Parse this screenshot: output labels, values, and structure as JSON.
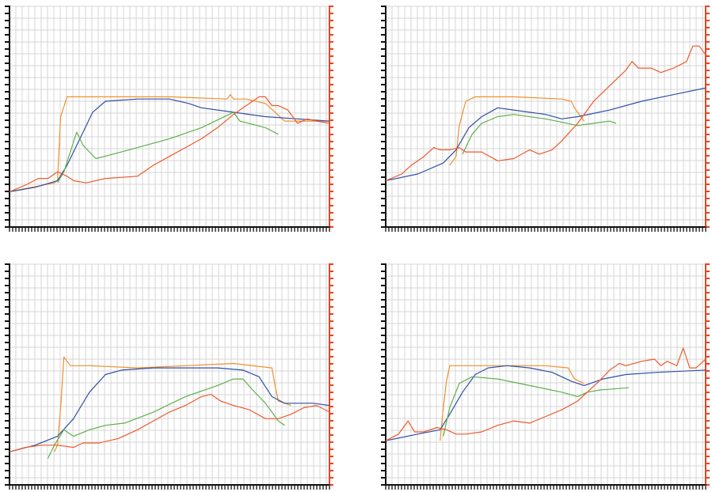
{
  "chart_data": [
    {
      "type": "line",
      "xlim": [
        0,
        100
      ],
      "ylim": [
        0,
        100
      ],
      "grid": true,
      "colors": {
        "orange": "#f0902a",
        "blue": "#2e4fa6",
        "green": "#5cb04c",
        "red": "#ee5a2c",
        "axis": "#111111",
        "redaxis": "#e8431f",
        "grid": "#d4d4d4"
      },
      "series": [
        {
          "color": "orange",
          "points": [
            [
              0,
              16
            ],
            [
              14,
              20
            ],
            [
              15,
              21
            ],
            [
              16,
              50
            ],
            [
              18,
              59
            ],
            [
              30,
              59
            ],
            [
              50,
              59
            ],
            [
              68,
              58
            ],
            [
              69,
              60
            ],
            [
              70,
              58
            ],
            [
              74,
              58
            ],
            [
              80,
              56
            ],
            [
              86,
              48
            ],
            [
              100,
              48
            ]
          ]
        },
        {
          "color": "blue",
          "points": [
            [
              0,
              16
            ],
            [
              8,
              18
            ],
            [
              15,
              21
            ],
            [
              18,
              28
            ],
            [
              22,
              40
            ],
            [
              26,
              52
            ],
            [
              30,
              57
            ],
            [
              40,
              58
            ],
            [
              50,
              58
            ],
            [
              56,
              56
            ],
            [
              60,
              54
            ],
            [
              70,
              52
            ],
            [
              80,
              50
            ],
            [
              90,
              49
            ],
            [
              100,
              48
            ]
          ]
        },
        {
          "color": "green",
          "points": [
            [
              15,
              20
            ],
            [
              17,
              25
            ],
            [
              21,
              43
            ],
            [
              23,
              37
            ],
            [
              27,
              31
            ],
            [
              35,
              34
            ],
            [
              50,
              40
            ],
            [
              60,
              45
            ],
            [
              70,
              52
            ],
            [
              72,
              48
            ],
            [
              80,
              45
            ],
            [
              84,
              42
            ]
          ]
        },
        {
          "color": "red",
          "points": [
            [
              0,
              16
            ],
            [
              5,
              19
            ],
            [
              9,
              22
            ],
            [
              12,
              22
            ],
            [
              15,
              25
            ],
            [
              18,
              23
            ],
            [
              20,
              21
            ],
            [
              24,
              20
            ],
            [
              30,
              22
            ],
            [
              40,
              23
            ],
            [
              45,
              28
            ],
            [
              50,
              32
            ],
            [
              55,
              36
            ],
            [
              60,
              40
            ],
            [
              65,
              45
            ],
            [
              70,
              51
            ],
            [
              75,
              56
            ],
            [
              78,
              59
            ],
            [
              80,
              59
            ],
            [
              82,
              55
            ],
            [
              84,
              55
            ],
            [
              87,
              53
            ],
            [
              90,
              47
            ],
            [
              93,
              49
            ],
            [
              96,
              48
            ],
            [
              100,
              47
            ]
          ]
        }
      ]
    },
    {
      "type": "line",
      "xlim": [
        0,
        100
      ],
      "ylim": [
        0,
        100
      ],
      "grid": true,
      "colors": {
        "orange": "#f0902a",
        "blue": "#2e4fa6",
        "green": "#5cb04c",
        "red": "#ee5a2c",
        "axis": "#111111",
        "redaxis": "#e8431f",
        "grid": "#d4d4d4"
      },
      "series": [
        {
          "color": "orange",
          "points": [
            [
              20,
              28
            ],
            [
              22,
              32
            ],
            [
              23,
              46
            ],
            [
              25,
              57
            ],
            [
              28,
              59
            ],
            [
              40,
              59
            ],
            [
              55,
              58
            ],
            [
              58,
              57
            ],
            [
              59,
              54
            ],
            [
              62,
              48
            ]
          ]
        },
        {
          "color": "blue",
          "points": [
            [
              0,
              21
            ],
            [
              10,
              24
            ],
            [
              18,
              29
            ],
            [
              22,
              35
            ],
            [
              26,
              45
            ],
            [
              30,
              50
            ],
            [
              35,
              54
            ],
            [
              40,
              53
            ],
            [
              50,
              51
            ],
            [
              55,
              49
            ],
            [
              60,
              50
            ],
            [
              70,
              53
            ],
            [
              80,
              57
            ],
            [
              90,
              60
            ],
            [
              100,
              63
            ]
          ]
        },
        {
          "color": "green",
          "points": [
            [
              24,
              33
            ],
            [
              27,
              42
            ],
            [
              30,
              47
            ],
            [
              35,
              50
            ],
            [
              40,
              51
            ],
            [
              50,
              49
            ],
            [
              60,
              46
            ],
            [
              65,
              47
            ],
            [
              70,
              48
            ],
            [
              72,
              47
            ]
          ]
        },
        {
          "color": "red",
          "points": [
            [
              0,
              21
            ],
            [
              5,
              24
            ],
            [
              8,
              28
            ],
            [
              12,
              32
            ],
            [
              15,
              36
            ],
            [
              17,
              35
            ],
            [
              20,
              35
            ],
            [
              23,
              36
            ],
            [
              25,
              34
            ],
            [
              30,
              34
            ],
            [
              35,
              30
            ],
            [
              40,
              31
            ],
            [
              45,
              35
            ],
            [
              48,
              33
            ],
            [
              52,
              35
            ],
            [
              55,
              39
            ],
            [
              60,
              47
            ],
            [
              65,
              57
            ],
            [
              70,
              64
            ],
            [
              75,
              71
            ],
            [
              77,
              75
            ],
            [
              79,
              72
            ],
            [
              83,
              72
            ],
            [
              86,
              70
            ],
            [
              90,
              72
            ],
            [
              94,
              75
            ],
            [
              96,
              82
            ],
            [
              98,
              82
            ],
            [
              100,
              78
            ]
          ]
        }
      ]
    },
    {
      "type": "line",
      "xlim": [
        0,
        100
      ],
      "ylim": [
        0,
        100
      ],
      "grid": true,
      "colors": {
        "orange": "#f0902a",
        "blue": "#2e4fa6",
        "green": "#5cb04c",
        "red": "#ee5a2c",
        "axis": "#111111",
        "redaxis": "#e8431f",
        "grid": "#d4d4d4"
      },
      "series": [
        {
          "color": "orange",
          "points": [
            [
              14,
              15
            ],
            [
              15,
              18
            ],
            [
              16,
              35
            ],
            [
              17,
              58
            ],
            [
              19,
              54
            ],
            [
              25,
              54
            ],
            [
              40,
              53
            ],
            [
              55,
              54
            ],
            [
              70,
              55
            ],
            [
              82,
              53
            ],
            [
              83,
              45
            ],
            [
              84,
              38
            ],
            [
              88,
              36
            ]
          ]
        },
        {
          "color": "blue",
          "points": [
            [
              0,
              15
            ],
            [
              8,
              18
            ],
            [
              15,
              22
            ],
            [
              20,
              30
            ],
            [
              25,
              42
            ],
            [
              30,
              50
            ],
            [
              35,
              52
            ],
            [
              45,
              53
            ],
            [
              55,
              53
            ],
            [
              65,
              53
            ],
            [
              73,
              52
            ],
            [
              78,
              49
            ],
            [
              82,
              40
            ],
            [
              86,
              37
            ],
            [
              95,
              37
            ],
            [
              100,
              36
            ]
          ]
        },
        {
          "color": "green",
          "points": [
            [
              12,
              12
            ],
            [
              14,
              18
            ],
            [
              17,
              25
            ],
            [
              20,
              22
            ],
            [
              25,
              25
            ],
            [
              30,
              27
            ],
            [
              36,
              28
            ],
            [
              45,
              33
            ],
            [
              55,
              40
            ],
            [
              65,
              45
            ],
            [
              70,
              48
            ],
            [
              73,
              48
            ],
            [
              76,
              43
            ],
            [
              80,
              37
            ],
            [
              84,
              29
            ],
            [
              86,
              27
            ]
          ]
        },
        {
          "color": "red",
          "points": [
            [
              0,
              15
            ],
            [
              5,
              17
            ],
            [
              10,
              18
            ],
            [
              15,
              18
            ],
            [
              20,
              17
            ],
            [
              23,
              19
            ],
            [
              28,
              19
            ],
            [
              34,
              21
            ],
            [
              40,
              25
            ],
            [
              45,
              29
            ],
            [
              50,
              33
            ],
            [
              55,
              36
            ],
            [
              60,
              40
            ],
            [
              63,
              41
            ],
            [
              66,
              38
            ],
            [
              70,
              36
            ],
            [
              75,
              34
            ],
            [
              80,
              30
            ],
            [
              84,
              30
            ],
            [
              88,
              32
            ],
            [
              92,
              35
            ],
            [
              96,
              36
            ],
            [
              100,
              33
            ]
          ]
        }
      ]
    },
    {
      "type": "line",
      "xlim": [
        0,
        100
      ],
      "ylim": [
        0,
        100
      ],
      "grid": true,
      "colors": {
        "orange": "#f0902a",
        "blue": "#2e4fa6",
        "green": "#5cb04c",
        "red": "#ee5a2c",
        "axis": "#111111",
        "redaxis": "#e8431f",
        "grid": "#d4d4d4"
      },
      "series": [
        {
          "color": "orange",
          "points": [
            [
              17,
              20
            ],
            [
              18,
              35
            ],
            [
              19,
              47
            ],
            [
              20,
              54
            ],
            [
              25,
              54
            ],
            [
              35,
              54
            ],
            [
              50,
              54
            ],
            [
              57,
              53
            ],
            [
              59,
              48
            ],
            [
              62,
              46
            ]
          ]
        },
        {
          "color": "blue",
          "points": [
            [
              0,
              20
            ],
            [
              10,
              23
            ],
            [
              17,
              25
            ],
            [
              20,
              32
            ],
            [
              24,
              42
            ],
            [
              28,
              50
            ],
            [
              32,
              53
            ],
            [
              38,
              54
            ],
            [
              45,
              53
            ],
            [
              52,
              51
            ],
            [
              58,
              47
            ],
            [
              62,
              45
            ],
            [
              68,
              48
            ],
            [
              75,
              50
            ],
            [
              85,
              51
            ],
            [
              100,
              52
            ]
          ]
        },
        {
          "color": "green",
          "points": [
            [
              18,
              22
            ],
            [
              20,
              35
            ],
            [
              23,
              46
            ],
            [
              27,
              49
            ],
            [
              35,
              48
            ],
            [
              45,
              45
            ],
            [
              55,
              42
            ],
            [
              60,
              40
            ],
            [
              63,
              42
            ],
            [
              67,
              43
            ],
            [
              76,
              44
            ]
          ]
        },
        {
          "color": "red",
          "points": [
            [
              0,
              20
            ],
            [
              4,
              23
            ],
            [
              7,
              29
            ],
            [
              9,
              24
            ],
            [
              12,
              24
            ],
            [
              16,
              26
            ],
            [
              19,
              25
            ],
            [
              22,
              23
            ],
            [
              25,
              23
            ],
            [
              30,
              24
            ],
            [
              35,
              27
            ],
            [
              40,
              29
            ],
            [
              45,
              28
            ],
            [
              50,
              31
            ],
            [
              55,
              34
            ],
            [
              60,
              38
            ],
            [
              63,
              42
            ],
            [
              66,
              46
            ],
            [
              70,
              52
            ],
            [
              73,
              55
            ],
            [
              75,
              54
            ],
            [
              80,
              56
            ],
            [
              84,
              57
            ],
            [
              86,
              54
            ],
            [
              88,
              56
            ],
            [
              91,
              54
            ],
            [
              93,
              62
            ],
            [
              95,
              53
            ],
            [
              97,
              53
            ],
            [
              100,
              57
            ]
          ]
        }
      ]
    }
  ]
}
